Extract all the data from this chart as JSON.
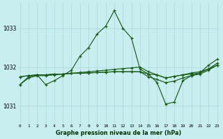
{
  "title": "Graphe pression niveau de la mer (hPa)",
  "bg_color": "#c8eef0",
  "grid_color": "#b0d8da",
  "line_color": "#1a5c1a",
  "ylim": [
    1030.55,
    1033.65
  ],
  "xlim": [
    -0.3,
    23.3
  ],
  "y_ticks": [
    1031,
    1032,
    1033
  ],
  "xlabel_color": "#003300",
  "series1": [
    1031.55,
    1031.75,
    1031.8,
    1031.55,
    1031.65,
    1031.78,
    1031.92,
    1032.28,
    1032.5,
    1032.85,
    1033.05,
    1033.45,
    1033.0,
    1032.75,
    1031.95,
    1031.82,
    1031.6,
    1031.05,
    1031.1,
    1031.65,
    1031.78,
    1031.85,
    1032.05,
    1032.2
  ],
  "series2": [
    1031.75,
    1031.78,
    1031.8,
    1031.8,
    1031.82,
    1031.82,
    1031.84,
    1031.84,
    1031.85,
    1031.86,
    1031.87,
    1031.88,
    1031.88,
    1031.88,
    1031.88,
    1031.82,
    1031.8,
    1031.72,
    1031.76,
    1031.8,
    1031.85,
    1031.88,
    1031.95,
    1032.05
  ],
  "series3": [
    1031.75,
    1031.78,
    1031.8,
    1031.8,
    1031.82,
    1031.82,
    1031.84,
    1031.84,
    1031.85,
    1031.86,
    1031.87,
    1031.88,
    1031.88,
    1031.88,
    1031.88,
    1031.75,
    1031.68,
    1031.6,
    1031.64,
    1031.72,
    1031.78,
    1031.82,
    1031.92,
    1032.05
  ],
  "series4": [
    1031.55,
    1031.72,
    1031.78,
    1031.78,
    1031.8,
    1031.82,
    1031.84,
    1031.86,
    1031.88,
    1031.9,
    1031.92,
    1031.94,
    1031.96,
    1031.98,
    1032.0,
    1031.88,
    1031.8,
    1031.72,
    1031.76,
    1031.8,
    1031.82,
    1031.85,
    1031.95,
    1032.1
  ]
}
